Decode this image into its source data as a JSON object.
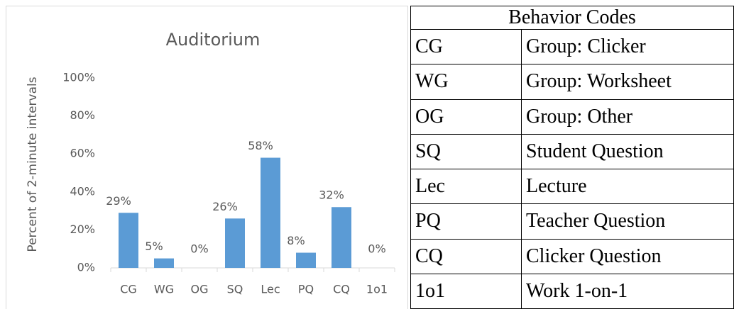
{
  "chart_data": {
    "type": "bar",
    "title": "Auditorium",
    "y_label": "Percent of 2-minute intervals",
    "categories": [
      "CG",
      "WG",
      "OG",
      "SQ",
      "Lec",
      "PQ",
      "CQ",
      "1o1"
    ],
    "values": [
      29,
      5,
      0,
      26,
      58,
      8,
      32,
      0
    ],
    "value_labels": [
      "29%",
      "5%",
      "0%",
      "26%",
      "58%",
      "8%",
      "32%",
      "0%"
    ],
    "color": "#5b9bd5",
    "ylim": [
      0,
      100
    ],
    "yticks": [
      {
        "value": 0,
        "label": "0%"
      },
      {
        "value": 20,
        "label": "20%"
      },
      {
        "value": 40,
        "label": "40%"
      },
      {
        "value": 60,
        "label": "60%"
      },
      {
        "value": 80,
        "label": "80%"
      },
      {
        "value": 100,
        "label": "100%"
      }
    ],
    "grid": false
  },
  "table": {
    "title": "Behavior Codes",
    "rows": [
      [
        "CG",
        "Group: Clicker"
      ],
      [
        "WG",
        "Group: Worksheet"
      ],
      [
        "OG",
        "Group: Other"
      ],
      [
        "SQ",
        "Student Question"
      ],
      [
        "Lec",
        "Lecture"
      ],
      [
        "PQ",
        "Teacher Question"
      ],
      [
        "CQ",
        "Clicker Question"
      ],
      [
        "1o1",
        "Work 1-on-1"
      ]
    ]
  }
}
